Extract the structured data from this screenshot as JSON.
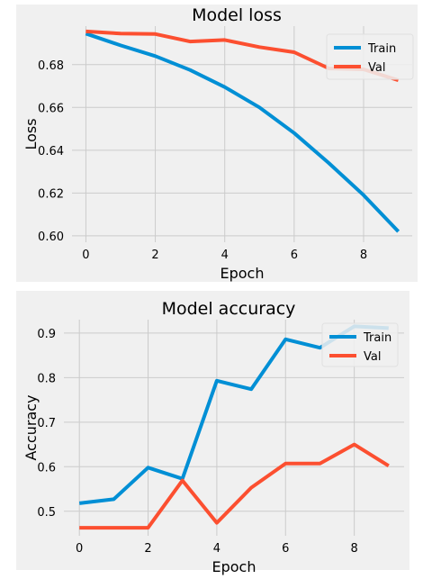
{
  "chart_data": [
    {
      "type": "line",
      "title": "Model loss",
      "xlabel": "Epoch",
      "ylabel": "Loss",
      "x": [
        0,
        1,
        2,
        3,
        4,
        5,
        6,
        7,
        8,
        9
      ],
      "xlim": [
        -0.4,
        9.4
      ],
      "ylim": [
        0.597,
        0.698
      ],
      "xticks": [
        0,
        2,
        4,
        6,
        8
      ],
      "yticks": [
        0.6,
        0.62,
        0.64,
        0.66,
        0.68
      ],
      "ytick_labels": [
        "0.60",
        "0.62",
        "0.64",
        "0.66",
        "0.68"
      ],
      "grid": true,
      "legend_position": "top-right",
      "series": [
        {
          "name": "Train",
          "color": "#008fd5",
          "values": [
            0.6945,
            0.689,
            0.684,
            0.6775,
            0.6695,
            0.66,
            0.648,
            0.634,
            0.619,
            0.602
          ]
        },
        {
          "name": "Val",
          "color": "#fc4f30",
          "values": [
            0.6955,
            0.6945,
            0.6943,
            0.6908,
            0.6915,
            0.6882,
            0.6858,
            0.6782,
            0.6778,
            0.6727
          ]
        }
      ]
    },
    {
      "type": "line",
      "title": "Model accuracy",
      "xlabel": "Epoch",
      "ylabel": "Accuracy",
      "x": [
        0,
        1,
        2,
        3,
        4,
        5,
        6,
        7,
        8,
        9
      ],
      "xlim": [
        -0.45,
        9.45
      ],
      "ylim": [
        0.445,
        0.93
      ],
      "xticks": [
        0,
        2,
        4,
        6,
        8
      ],
      "yticks": [
        0.5,
        0.6,
        0.7,
        0.8,
        0.9
      ],
      "ytick_labels": [
        "0.5",
        "0.6",
        "0.7",
        "0.8",
        "0.9"
      ],
      "grid": true,
      "legend_position": "top-right",
      "series": [
        {
          "name": "Train",
          "color": "#008fd5",
          "values": [
            0.518,
            0.527,
            0.598,
            0.573,
            0.793,
            0.774,
            0.886,
            0.867,
            0.915,
            0.911
          ]
        },
        {
          "name": "Val",
          "color": "#fc4f30",
          "values": [
            0.463,
            0.463,
            0.463,
            0.569,
            0.474,
            0.553,
            0.607,
            0.607,
            0.65,
            0.602
          ]
        }
      ]
    }
  ]
}
